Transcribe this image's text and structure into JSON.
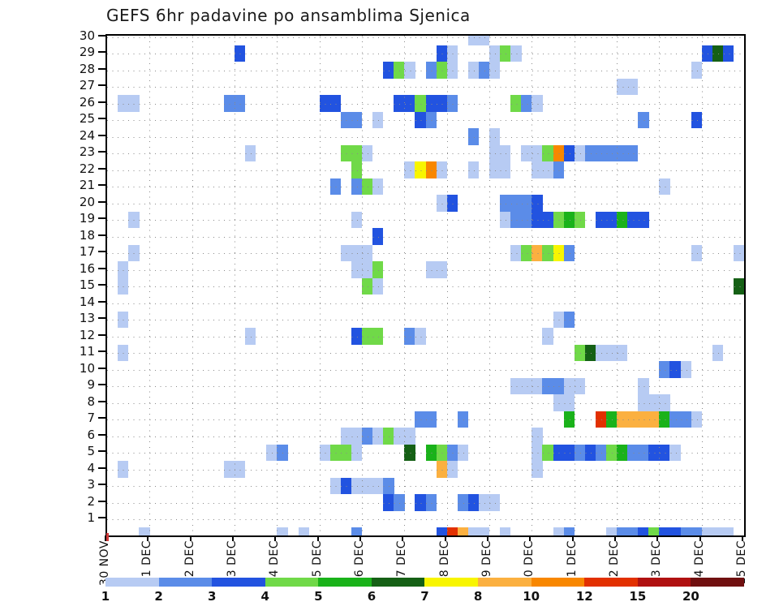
{
  "title": "GEFS 6hr padavine po ansamblima Sjenica",
  "chart_data": {
    "type": "heatmap",
    "title": "GEFS 6hr padavine po ansamblima Sjenica",
    "xlabel": "",
    "ylabel": "ensemble member",
    "grid": "dotted",
    "x_axis": {
      "tick_labels": [
        "30 NOV",
        "01 DEC",
        "02 DEC",
        "03 DEC",
        "04 DEC",
        "05 DEC",
        "06 DEC",
        "07 DEC",
        "08 DEC",
        "09 DEC",
        "10 DEC",
        "11 DEC",
        "12 DEC",
        "13 DEC",
        "14 DEC",
        "15 DEC"
      ],
      "columns_per_day": 4,
      "total_columns": 60
    },
    "y_axis": {
      "tick_labels": [
        30,
        29,
        28,
        27,
        26,
        25,
        24,
        23,
        22,
        21,
        20,
        19,
        18,
        17,
        16,
        15,
        14,
        13,
        12,
        11,
        10,
        9,
        8,
        7,
        6,
        5,
        4,
        3,
        2,
        1
      ]
    },
    "legend": {
      "position": "bottom",
      "values": [
        1,
        2,
        3,
        4,
        5,
        6,
        7,
        8,
        10,
        12,
        15,
        20
      ],
      "colors": {
        "1": "#b7cbf3",
        "2": "#5b8ce8",
        "3": "#2253e0",
        "4": "#70d948",
        "5": "#1ab21a",
        "6": "#156015",
        "7": "#f8f500",
        "8": "#fbb040",
        "10": "#f88700",
        "12": "#e23000",
        "15": "#b01111",
        "20": "#701010"
      }
    },
    "origin_marker_color": "#d03838",
    "cells": [
      [
        30,
        34,
        1
      ],
      [
        30,
        35,
        1
      ],
      [
        29,
        12,
        3
      ],
      [
        29,
        31,
        3
      ],
      [
        29,
        32,
        1
      ],
      [
        29,
        36,
        1
      ],
      [
        29,
        37,
        4
      ],
      [
        29,
        38,
        1
      ],
      [
        29,
        56,
        3
      ],
      [
        29,
        57,
        6
      ],
      [
        29,
        58,
        3
      ],
      [
        28,
        26,
        3
      ],
      [
        28,
        27,
        4
      ],
      [
        28,
        28,
        1
      ],
      [
        28,
        30,
        2
      ],
      [
        28,
        31,
        4
      ],
      [
        28,
        32,
        1
      ],
      [
        28,
        34,
        1
      ],
      [
        28,
        35,
        2
      ],
      [
        28,
        36,
        1
      ],
      [
        28,
        55,
        1
      ],
      [
        27,
        48,
        1
      ],
      [
        27,
        49,
        1
      ],
      [
        26,
        1,
        1
      ],
      [
        26,
        2,
        1
      ],
      [
        26,
        11,
        2
      ],
      [
        26,
        12,
        2
      ],
      [
        26,
        20,
        3
      ],
      [
        26,
        21,
        3
      ],
      [
        26,
        27,
        3
      ],
      [
        26,
        28,
        3
      ],
      [
        26,
        29,
        4
      ],
      [
        26,
        30,
        3
      ],
      [
        26,
        31,
        3
      ],
      [
        26,
        32,
        2
      ],
      [
        26,
        38,
        4
      ],
      [
        26,
        39,
        2
      ],
      [
        26,
        40,
        1
      ],
      [
        25,
        22,
        2
      ],
      [
        25,
        23,
        2
      ],
      [
        25,
        25,
        1
      ],
      [
        25,
        29,
        3
      ],
      [
        25,
        30,
        2
      ],
      [
        25,
        50,
        2
      ],
      [
        25,
        55,
        3
      ],
      [
        24,
        34,
        2
      ],
      [
        24,
        36,
        1
      ],
      [
        23,
        13,
        1
      ],
      [
        23,
        22,
        4
      ],
      [
        23,
        23,
        4
      ],
      [
        23,
        24,
        1
      ],
      [
        23,
        36,
        1
      ],
      [
        23,
        37,
        1
      ],
      [
        23,
        39,
        1
      ],
      [
        23,
        40,
        1
      ],
      [
        23,
        41,
        4
      ],
      [
        23,
        42,
        10
      ],
      [
        23,
        43,
        3
      ],
      [
        23,
        44,
        1
      ],
      [
        23,
        45,
        2
      ],
      [
        23,
        46,
        2
      ],
      [
        23,
        47,
        2
      ],
      [
        23,
        48,
        2
      ],
      [
        23,
        49,
        2
      ],
      [
        22,
        23,
        4
      ],
      [
        22,
        28,
        1
      ],
      [
        22,
        29,
        7
      ],
      [
        22,
        30,
        10
      ],
      [
        22,
        31,
        1
      ],
      [
        22,
        34,
        1
      ],
      [
        22,
        36,
        1
      ],
      [
        22,
        37,
        1
      ],
      [
        22,
        40,
        1
      ],
      [
        22,
        41,
        1
      ],
      [
        22,
        42,
        2
      ],
      [
        21,
        21,
        2
      ],
      [
        21,
        23,
        2
      ],
      [
        21,
        24,
        4
      ],
      [
        21,
        25,
        1
      ],
      [
        21,
        52,
        1
      ],
      [
        20,
        31,
        1
      ],
      [
        20,
        32,
        3
      ],
      [
        20,
        37,
        2
      ],
      [
        20,
        38,
        2
      ],
      [
        20,
        39,
        2
      ],
      [
        20,
        40,
        3
      ],
      [
        19,
        2,
        1
      ],
      [
        19,
        23,
        1
      ],
      [
        19,
        37,
        1
      ],
      [
        19,
        38,
        2
      ],
      [
        19,
        39,
        2
      ],
      [
        19,
        40,
        3
      ],
      [
        19,
        41,
        3
      ],
      [
        19,
        42,
        4
      ],
      [
        19,
        43,
        5
      ],
      [
        19,
        44,
        4
      ],
      [
        19,
        46,
        3
      ],
      [
        19,
        47,
        3
      ],
      [
        19,
        48,
        5
      ],
      [
        19,
        49,
        3
      ],
      [
        19,
        50,
        3
      ],
      [
        18,
        25,
        3
      ],
      [
        17,
        2,
        1
      ],
      [
        17,
        22,
        1
      ],
      [
        17,
        23,
        1
      ],
      [
        17,
        24,
        1
      ],
      [
        17,
        38,
        1
      ],
      [
        17,
        39,
        4
      ],
      [
        17,
        40,
        8
      ],
      [
        17,
        41,
        4
      ],
      [
        17,
        42,
        7
      ],
      [
        17,
        43,
        2
      ],
      [
        17,
        55,
        1
      ],
      [
        17,
        59,
        1
      ],
      [
        16,
        1,
        1
      ],
      [
        16,
        23,
        1
      ],
      [
        16,
        24,
        1
      ],
      [
        16,
        25,
        4
      ],
      [
        16,
        30,
        1
      ],
      [
        16,
        31,
        1
      ],
      [
        15,
        1,
        1
      ],
      [
        15,
        24,
        4
      ],
      [
        15,
        25,
        1
      ],
      [
        15,
        59,
        6
      ],
      [
        13,
        1,
        1
      ],
      [
        13,
        42,
        1
      ],
      [
        13,
        43,
        2
      ],
      [
        12,
        13,
        1
      ],
      [
        12,
        23,
        3
      ],
      [
        12,
        24,
        4
      ],
      [
        12,
        25,
        4
      ],
      [
        12,
        28,
        2
      ],
      [
        12,
        29,
        1
      ],
      [
        12,
        41,
        1
      ],
      [
        11,
        1,
        1
      ],
      [
        11,
        44,
        4
      ],
      [
        11,
        45,
        6
      ],
      [
        11,
        46,
        1
      ],
      [
        11,
        47,
        1
      ],
      [
        11,
        48,
        1
      ],
      [
        11,
        57,
        1
      ],
      [
        10,
        52,
        2
      ],
      [
        10,
        53,
        3
      ],
      [
        10,
        54,
        1
      ],
      [
        9,
        38,
        1
      ],
      [
        9,
        39,
        1
      ],
      [
        9,
        40,
        1
      ],
      [
        9,
        41,
        2
      ],
      [
        9,
        42,
        2
      ],
      [
        9,
        43,
        1
      ],
      [
        9,
        44,
        1
      ],
      [
        9,
        50,
        1
      ],
      [
        8,
        42,
        1
      ],
      [
        8,
        43,
        1
      ],
      [
        8,
        50,
        1
      ],
      [
        8,
        51,
        1
      ],
      [
        8,
        52,
        1
      ],
      [
        7,
        29,
        2
      ],
      [
        7,
        30,
        2
      ],
      [
        7,
        33,
        2
      ],
      [
        7,
        43,
        5
      ],
      [
        7,
        46,
        12
      ],
      [
        7,
        47,
        5
      ],
      [
        7,
        48,
        8
      ],
      [
        7,
        49,
        8
      ],
      [
        7,
        50,
        8
      ],
      [
        7,
        51,
        8
      ],
      [
        7,
        52,
        5
      ],
      [
        7,
        53,
        2
      ],
      [
        7,
        54,
        2
      ],
      [
        7,
        55,
        1
      ],
      [
        6,
        22,
        1
      ],
      [
        6,
        23,
        1
      ],
      [
        6,
        24,
        2
      ],
      [
        6,
        25,
        1
      ],
      [
        6,
        26,
        4
      ],
      [
        6,
        27,
        1
      ],
      [
        6,
        28,
        1
      ],
      [
        6,
        40,
        1
      ],
      [
        5,
        15,
        1
      ],
      [
        5,
        16,
        2
      ],
      [
        5,
        20,
        1
      ],
      [
        5,
        21,
        4
      ],
      [
        5,
        22,
        4
      ],
      [
        5,
        23,
        1
      ],
      [
        5,
        28,
        6
      ],
      [
        5,
        30,
        5
      ],
      [
        5,
        31,
        4
      ],
      [
        5,
        32,
        2
      ],
      [
        5,
        33,
        1
      ],
      [
        5,
        40,
        1
      ],
      [
        5,
        41,
        4
      ],
      [
        5,
        42,
        3
      ],
      [
        5,
        43,
        3
      ],
      [
        5,
        44,
        2
      ],
      [
        5,
        45,
        3
      ],
      [
        5,
        46,
        2
      ],
      [
        5,
        47,
        4
      ],
      [
        5,
        48,
        5
      ],
      [
        5,
        49,
        2
      ],
      [
        5,
        50,
        2
      ],
      [
        5,
        51,
        3
      ],
      [
        5,
        52,
        3
      ],
      [
        5,
        53,
        1
      ],
      [
        4,
        1,
        1
      ],
      [
        4,
        11,
        1
      ],
      [
        4,
        12,
        1
      ],
      [
        4,
        31,
        8
      ],
      [
        4,
        32,
        1
      ],
      [
        4,
        40,
        1
      ],
      [
        3,
        21,
        1
      ],
      [
        3,
        22,
        3
      ],
      [
        3,
        23,
        1
      ],
      [
        3,
        24,
        1
      ],
      [
        3,
        25,
        1
      ],
      [
        3,
        26,
        2
      ],
      [
        2,
        26,
        3
      ],
      [
        2,
        27,
        2
      ],
      [
        2,
        29,
        3
      ],
      [
        2,
        30,
        2
      ],
      [
        2,
        33,
        2
      ],
      [
        2,
        34,
        3
      ],
      [
        2,
        35,
        1
      ],
      [
        2,
        36,
        1
      ],
      [
        0,
        3,
        1
      ],
      [
        0,
        16,
        1
      ],
      [
        0,
        18,
        1
      ],
      [
        0,
        23,
        2
      ],
      [
        0,
        31,
        3
      ],
      [
        0,
        32,
        12
      ],
      [
        0,
        33,
        8
      ],
      [
        0,
        34,
        1
      ],
      [
        0,
        35,
        1
      ],
      [
        0,
        37,
        1
      ],
      [
        0,
        42,
        1
      ],
      [
        0,
        43,
        2
      ],
      [
        0,
        47,
        1
      ],
      [
        0,
        48,
        2
      ],
      [
        0,
        49,
        2
      ],
      [
        0,
        50,
        3
      ],
      [
        0,
        51,
        4
      ],
      [
        0,
        52,
        3
      ],
      [
        0,
        53,
        3
      ],
      [
        0,
        54,
        2
      ],
      [
        0,
        55,
        2
      ],
      [
        0,
        56,
        1
      ],
      [
        0,
        57,
        1
      ],
      [
        0,
        58,
        1
      ]
    ]
  }
}
